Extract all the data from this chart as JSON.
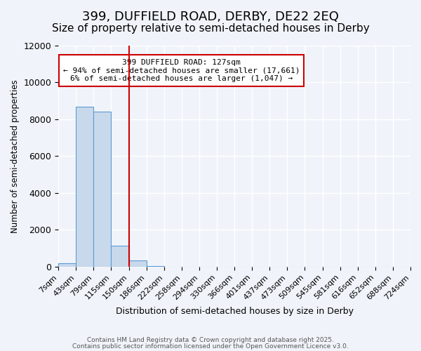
{
  "title": "399, DUFFIELD ROAD, DERBY, DE22 2EQ",
  "subtitle": "Size of property relative to semi-detached houses in Derby",
  "xlabel": "Distribution of semi-detached houses by size in Derby",
  "ylabel": "Number of semi-detached properties",
  "bin_edges": [
    "7sqm",
    "43sqm",
    "79sqm",
    "115sqm",
    "150sqm",
    "186sqm",
    "222sqm",
    "258sqm",
    "294sqm",
    "330sqm",
    "366sqm",
    "401sqm",
    "437sqm",
    "473sqm",
    "509sqm",
    "545sqm",
    "581sqm",
    "616sqm",
    "652sqm",
    "688sqm",
    "724sqm"
  ],
  "bar_values": [
    200,
    8700,
    8400,
    1150,
    350,
    50,
    0,
    0,
    0,
    0,
    0,
    0,
    0,
    0,
    0,
    0,
    0,
    0,
    0,
    0
  ],
  "bar_color": "#c9d9ec",
  "bar_edge_color": "#5b9bd5",
  "vline_color": "#cc0000",
  "vline_pos": 3.5,
  "annotation_text": "399 DUFFIELD ROAD: 127sqm\n← 94% of semi-detached houses are smaller (17,661)\n6% of semi-detached houses are larger (1,047) →",
  "annotation_box_color": "#ffffff",
  "annotation_box_edge": "#cc0000",
  "ylim": [
    0,
    12000
  ],
  "yticks": [
    0,
    2000,
    4000,
    6000,
    8000,
    10000,
    12000
  ],
  "footer1": "Contains HM Land Registry data © Crown copyright and database right 2025.",
  "footer2": "Contains public sector information licensed under the Open Government Licence v3.0.",
  "bg_color": "#f0f4fa",
  "grid_color": "#ffffff",
  "title_fontsize": 13,
  "subtitle_fontsize": 11,
  "tick_fontsize": 8
}
